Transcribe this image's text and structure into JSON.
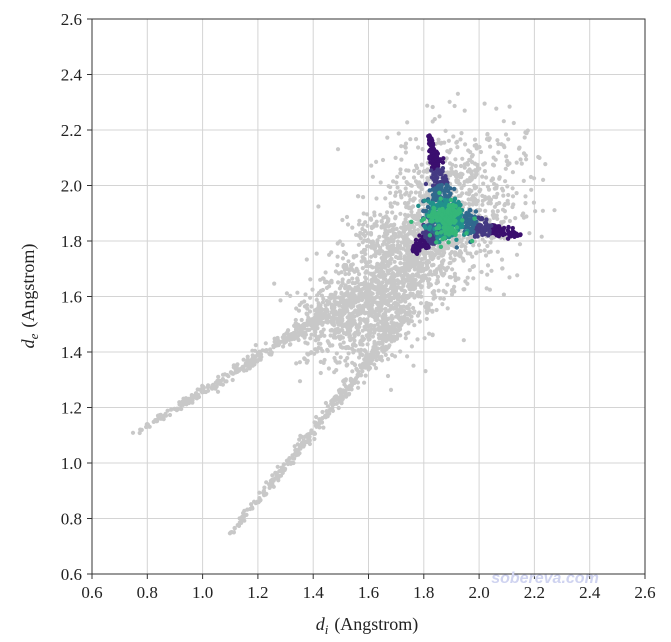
{
  "chart_data": {
    "type": "scatter",
    "title": "",
    "xlabel": {
      "symbol": "d",
      "subscript": "i",
      "unit": "(Angstrom)"
    },
    "ylabel": {
      "symbol": "d",
      "subscript": "e",
      "unit": "(Angstrom)"
    },
    "xlim": [
      0.6,
      2.6
    ],
    "ylim": [
      0.6,
      2.6
    ],
    "grid": true,
    "xticks": [
      "0.6",
      "0.8",
      "1.0",
      "1.2",
      "1.4",
      "1.6",
      "1.8",
      "2.0",
      "2.2",
      "2.4",
      "2.6"
    ],
    "yticks": [
      "0.6",
      "0.8",
      "1.0",
      "1.2",
      "1.4",
      "1.6",
      "1.8",
      "2.0",
      "2.2",
      "2.4",
      "2.6"
    ],
    "background_color": "#c8c8c8",
    "highlight_colors": [
      "#3b0f6f",
      "#443a83",
      "#31688e",
      "#21918c",
      "#35b779"
    ],
    "background_cloud": {
      "main_region": {
        "di_range": [
          1.2,
          2.3
        ],
        "de_range": [
          1.25,
          2.37
        ],
        "center": [
          1.72,
          1.72
        ]
      },
      "spikes": [
        {
          "from": [
            0.73,
            1.09
          ],
          "to": [
            1.55,
            1.6
          ]
        },
        {
          "from": [
            1.09,
            0.73
          ],
          "to": [
            1.75,
            1.55
          ]
        }
      ]
    },
    "highlight_region": {
      "center": [
        1.88,
        1.88
      ],
      "arms": [
        {
          "tip": [
            1.82,
            2.18
          ]
        },
        {
          "tip": [
            2.15,
            1.82
          ]
        },
        {
          "tip": [
            1.76,
            1.76
          ]
        }
      ]
    },
    "watermark": "sobereva.com"
  }
}
